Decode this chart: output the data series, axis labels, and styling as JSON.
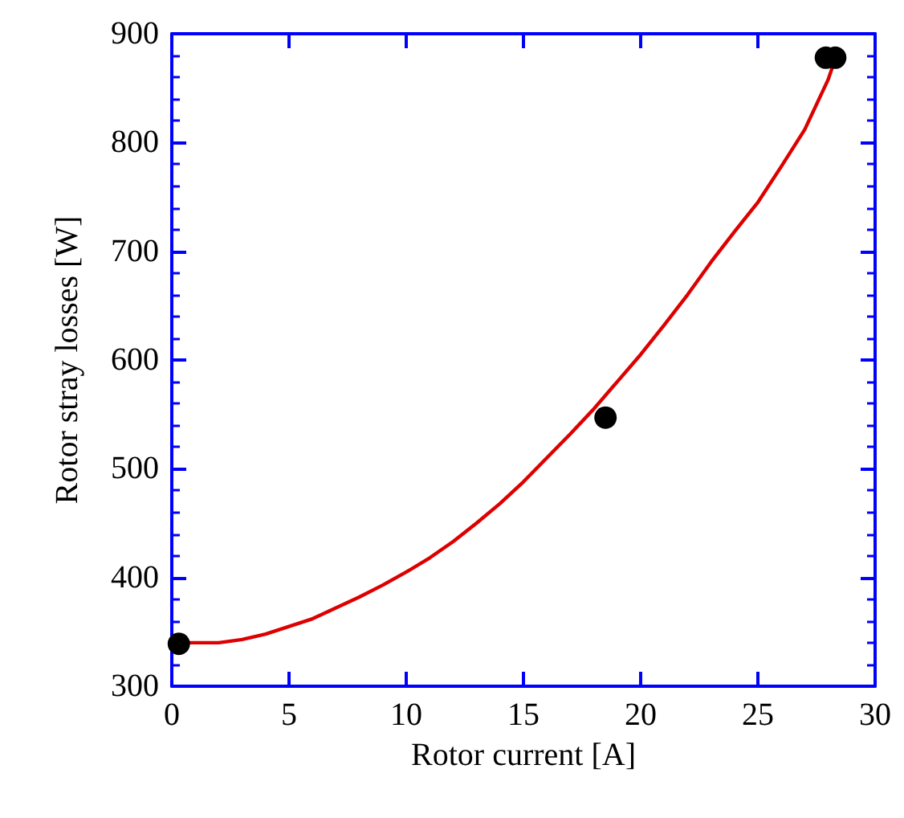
{
  "chart_data": {
    "type": "scatter",
    "xlabel": "Rotor current [A]",
    "ylabel": "Rotor stray losses [W]",
    "xlim": [
      0,
      30
    ],
    "ylim": [
      300,
      900
    ],
    "xticks": [
      0,
      5,
      10,
      15,
      20,
      25,
      30
    ],
    "yticks": [
      300,
      400,
      500,
      600,
      700,
      800,
      900
    ],
    "grid": false,
    "marker": "circle",
    "series": [
      {
        "color": "#000000",
        "x": [
          0.3,
          18.5,
          27.9,
          28.3
        ],
        "values": [
          339,
          547,
          878,
          878
        ]
      },
      {
        "type": "line",
        "color": "#dd0000",
        "marker": "none",
        "line_style": "solid",
        "x": [
          0,
          1,
          2,
          3,
          4,
          5,
          6,
          7,
          8,
          9,
          10,
          11,
          12,
          13,
          14,
          15,
          16,
          17,
          18,
          19,
          20,
          21,
          22,
          23,
          24,
          25,
          26,
          27,
          28,
          28.3
        ],
        "values": [
          340,
          340,
          340,
          343,
          348,
          355,
          362,
          372,
          382,
          393,
          405,
          418,
          433,
          450,
          468,
          488,
          510,
          532,
          555,
          580,
          605,
          632,
          660,
          690,
          718,
          745,
          778,
          812,
          858,
          877
        ]
      }
    ]
  }
}
